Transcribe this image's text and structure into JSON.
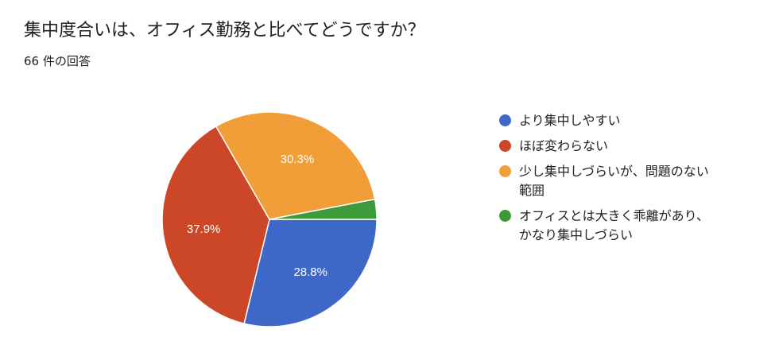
{
  "question": {
    "title": "集中度合いは、オフィス勤務と比べてどうですか？",
    "response_count": "66 件の回答"
  },
  "chart_data": {
    "type": "pie",
    "categories": [
      "より集中しやすい",
      "ほぼ変わらない",
      "少し集中しづらいが、問題のない範囲",
      "オフィスとは大きく乖離があり、かなり集中しづらい"
    ],
    "values": [
      28.8,
      37.9,
      30.3,
      3.0
    ],
    "data_labels": [
      "28.8%",
      "37.9%",
      "30.3%",
      ""
    ],
    "colors": [
      "#3e68c8",
      "#cb4727",
      "#f19e39",
      "#3d9a3a"
    ],
    "legend_position": "right"
  }
}
